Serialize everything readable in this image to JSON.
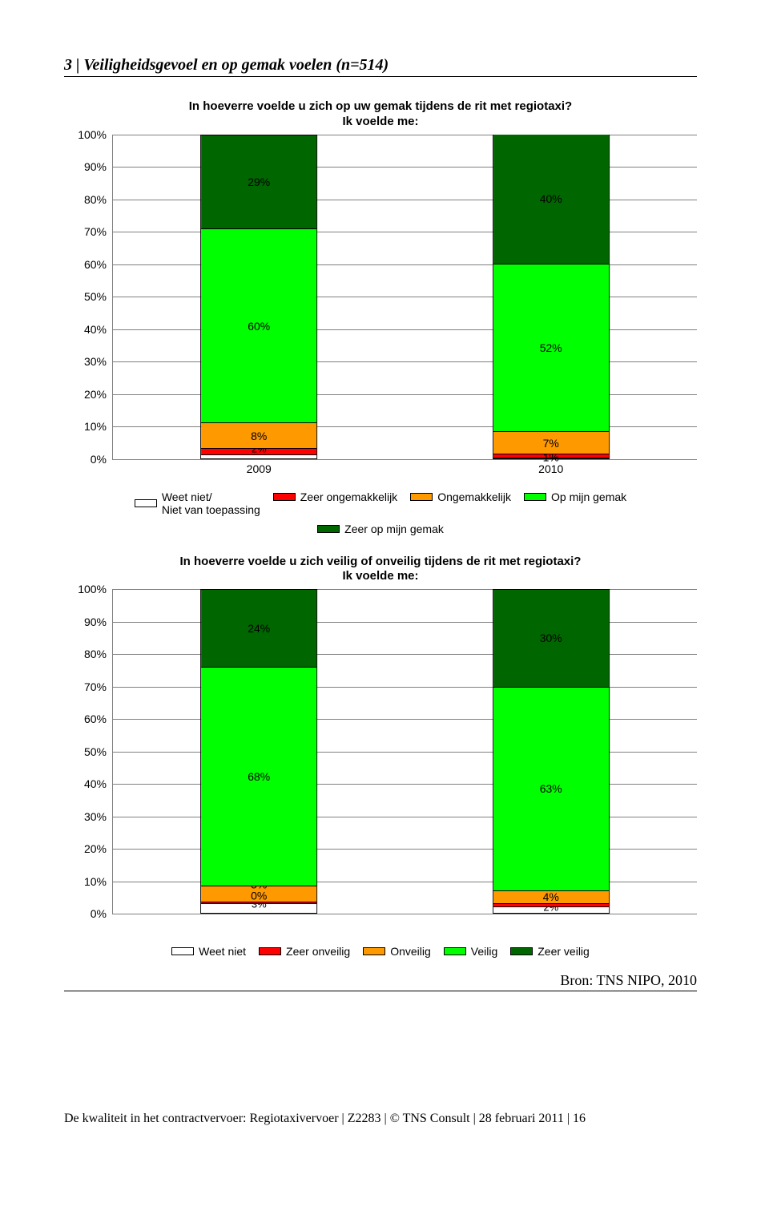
{
  "page": {
    "heading": "3 | Veiligheidsgevoel en op gemak voelen (n=514)",
    "source": "Bron: TNS NIPO, 2010",
    "footer": "De kwaliteit in het contractvervoer: Regiotaxivervoer | Z2283 | © TNS Consult | 28 februari 2011 | 16"
  },
  "colors": {
    "dark_green": "#006600",
    "bright_green": "#00ff00",
    "orange": "#ff9900",
    "red": "#ff0000",
    "white": "#ffffff",
    "grid": "#808080",
    "text": "#000000",
    "bg": "#ffffff"
  },
  "chart1": {
    "type": "stacked_bar_100",
    "title_line1": "In hoeverre voelde u zich op uw gemak tijdens de rit met regiotaxi?",
    "title_line2": "Ik voelde me:",
    "ylim": [
      0,
      100
    ],
    "ytick_step": 10,
    "y_suffix": "%",
    "bar_total_pct": 100,
    "categories": [
      "2009",
      "2010"
    ],
    "legend": [
      {
        "key": "wn",
        "label": "Weet niet/\nNiet van toepassing",
        "color": "#ffffff"
      },
      {
        "key": "zong",
        "label": "Zeer ongemakkelijk",
        "color": "#ff0000"
      },
      {
        "key": "ong",
        "label": "Ongemakkelijk",
        "color": "#ff9900"
      },
      {
        "key": "gemak",
        "label": "Op mijn gemak",
        "color": "#00ff00"
      },
      {
        "key": "zgemak",
        "label": "Zeer op mijn gemak",
        "color": "#006600"
      }
    ],
    "series": [
      {
        "cat": "2009",
        "segments": [
          {
            "key": "wn",
            "value": 1,
            "label": "",
            "color": "#ffffff"
          },
          {
            "key": "zong",
            "value": 2,
            "label": "2%",
            "color": "#ff0000",
            "tiny": true
          },
          {
            "key": "ong",
            "value": 8,
            "label": "8%",
            "color": "#ff9900"
          },
          {
            "key": "gemak",
            "value": 60,
            "label": "60%",
            "color": "#00ff00"
          },
          {
            "key": "zgemak",
            "value": 29,
            "label": "29%",
            "color": "#006600"
          }
        ]
      },
      {
        "cat": "2010",
        "segments": [
          {
            "key": "wn",
            "value": 0,
            "label": "",
            "color": "#ffffff"
          },
          {
            "key": "zong",
            "value": 1,
            "label": "0%\n1%",
            "color": "#ff0000",
            "stack": true
          },
          {
            "key": "ong",
            "value": 7,
            "label": "7%",
            "color": "#ff9900"
          },
          {
            "key": "gemak",
            "value": 52,
            "label": "52%",
            "color": "#00ff00"
          },
          {
            "key": "zgemak",
            "value": 40,
            "label": "40%",
            "color": "#006600"
          }
        ]
      }
    ]
  },
  "chart2": {
    "type": "stacked_bar_100",
    "title_line1": "In hoeverre voelde u zich veilig of onveilig tijdens de rit met regiotaxi?",
    "title_line2": "Ik voelde me:",
    "ylim": [
      0,
      100
    ],
    "ytick_step": 10,
    "y_suffix": "%",
    "bar_total_pct": 100,
    "categories": [
      "",
      ""
    ],
    "legend": [
      {
        "key": "wn",
        "label": "Weet niet",
        "color": "#ffffff"
      },
      {
        "key": "zonv",
        "label": "Zeer onveilig",
        "color": "#ff0000"
      },
      {
        "key": "onv",
        "label": "Onveilig",
        "color": "#ff9900"
      },
      {
        "key": "veil",
        "label": "Veilig",
        "color": "#00ff00"
      },
      {
        "key": "zveil",
        "label": "Zeer veilig",
        "color": "#006600"
      }
    ],
    "series": [
      {
        "cat": "",
        "segments": [
          {
            "key": "wn",
            "value": 3,
            "label": "3%",
            "color": "#ffffff",
            "tiny": true
          },
          {
            "key": "zonv",
            "value": 0.5,
            "label": "",
            "color": "#ff0000"
          },
          {
            "key": "onv",
            "value": 5,
            "label": "5%\n0%",
            "color": "#ff9900",
            "stack": true
          },
          {
            "key": "veil",
            "value": 68,
            "label": "68%",
            "color": "#00ff00"
          },
          {
            "key": "zveil",
            "value": 24,
            "label": "24%",
            "color": "#006600"
          }
        ]
      },
      {
        "cat": "",
        "segments": [
          {
            "key": "wn",
            "value": 2,
            "label": "2%",
            "color": "#ffffff",
            "tiny": true
          },
          {
            "key": "zonv",
            "value": 1,
            "label": "",
            "color": "#ff0000"
          },
          {
            "key": "onv",
            "value": 4,
            "label": "4%",
            "color": "#ff9900"
          },
          {
            "key": "veil",
            "value": 63,
            "label": "63%",
            "color": "#00ff00"
          },
          {
            "key": "zveil",
            "value": 30,
            "label": "30%",
            "color": "#006600"
          }
        ]
      }
    ]
  }
}
